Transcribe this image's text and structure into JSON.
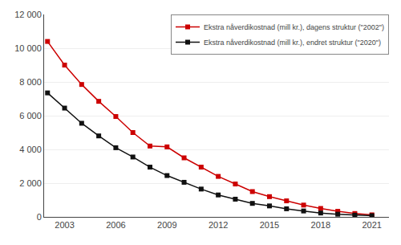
{
  "chart_data": {
    "type": "line",
    "x": [
      2002,
      2003,
      2004,
      2005,
      2006,
      2007,
      2008,
      2009,
      2010,
      2011,
      2012,
      2013,
      2014,
      2015,
      2016,
      2017,
      2018,
      2019,
      2020,
      2021
    ],
    "series": [
      {
        "name": "Ekstra nåverdikostnad (mill kr.), dagens struktur (\"2002\")",
        "color": "#cc0000",
        "values": [
          10400,
          9000,
          7850,
          6850,
          5950,
          5000,
          4200,
          4150,
          3500,
          2950,
          2400,
          1950,
          1500,
          1200,
          950,
          700,
          500,
          330,
          200,
          120
        ]
      },
      {
        "name": "Ekstra nåverdikostnad (mill kr.), endret struktur (\"2020\")",
        "color": "#111111",
        "values": [
          7350,
          6450,
          5550,
          4800,
          4100,
          3550,
          2950,
          2450,
          2050,
          1650,
          1300,
          1050,
          800,
          650,
          480,
          350,
          230,
          160,
          100,
          70
        ]
      }
    ],
    "xlim": [
      2001.8,
      2022.0
    ],
    "xticks": [
      2003,
      2006,
      2009,
      2012,
      2015,
      2018,
      2021
    ],
    "ylim": [
      0,
      12000
    ],
    "yticks": [
      0,
      {
        "value": 2000,
        "label": "2 000"
      },
      {
        "value": 4000,
        "label": "4 000"
      },
      {
        "value": 6000,
        "label": "6 000"
      },
      {
        "value": 8000,
        "label": "8 000"
      },
      {
        "value": 10000,
        "label": "10 000"
      },
      {
        "value": 12000,
        "label": "12 000"
      }
    ],
    "grid": "y",
    "legend": "upper right",
    "marker": "square",
    "line_style": "solid"
  }
}
